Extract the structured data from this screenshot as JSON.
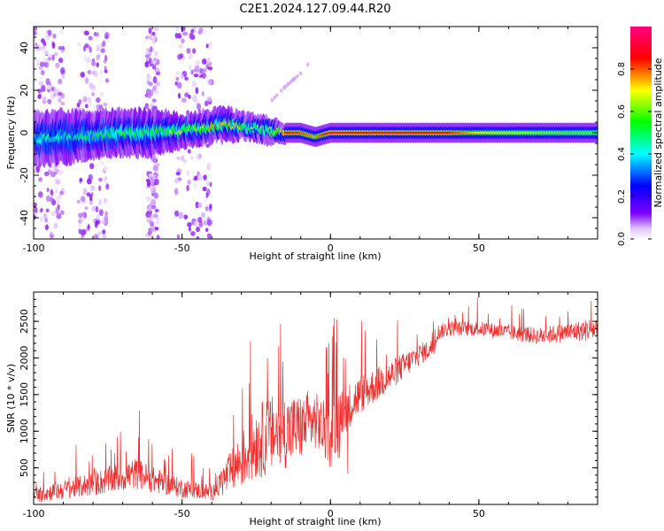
{
  "title": "C2E1.2024.127.09.44.R20",
  "chart_data": [
    {
      "type": "heatmap",
      "xlabel": "Height of straight line (km)",
      "ylabel": "Frequency (Hz)",
      "xlim": [
        -100,
        90
      ],
      "ylim": [
        -50,
        50
      ],
      "xticks": [
        -100,
        -50,
        0,
        50
      ],
      "yticks": [
        -40,
        -20,
        0,
        20,
        40
      ],
      "colorbar": {
        "label": "Normalized spectral amplitude",
        "range": [
          0,
          1
        ],
        "ticks": [
          0.0,
          0.2,
          0.4,
          0.6,
          0.8
        ],
        "tick_labels": [
          "0.0",
          "0.2",
          "0.4",
          "0.6",
          "0.8"
        ],
        "colors": [
          "#ffffff",
          "#8000ff",
          "#0000ff",
          "#00ffff",
          "#00ff00",
          "#ffff00",
          "#ff0000",
          "#ff0080"
        ]
      },
      "ridge": {
        "x": [
          -100,
          -90,
          -80,
          -70,
          -60,
          -50,
          -45,
          -40,
          -35,
          -30,
          -25,
          -20,
          -15,
          -10,
          -5,
          0,
          10,
          20,
          30,
          40,
          50,
          60,
          70,
          80,
          90
        ],
        "y": [
          -3,
          -2,
          -1,
          0,
          0,
          1,
          2,
          3,
          4,
          3,
          2,
          1,
          0,
          0,
          -2,
          0,
          0,
          0,
          0,
          0,
          0,
          0,
          0,
          0,
          0
        ],
        "amplitude": [
          0.4,
          0.42,
          0.45,
          0.5,
          0.52,
          0.6,
          0.62,
          0.68,
          0.65,
          0.62,
          0.55,
          0.58,
          0.85,
          0.82,
          0.75,
          0.9,
          0.88,
          0.88,
          0.86,
          0.85,
          0.7,
          0.65,
          0.62,
          0.6,
          0.58
        ],
        "width_hz": [
          8,
          8,
          7,
          7,
          7,
          5,
          5,
          5,
          5,
          4,
          4,
          4,
          3,
          3,
          3,
          3,
          3,
          3,
          3,
          3,
          3,
          3,
          3,
          3,
          3
        ]
      },
      "weak_bands_x": [
        [
          -100,
          -90
        ],
        [
          -85,
          -75
        ],
        [
          -62,
          -58
        ],
        [
          -52,
          -40
        ]
      ],
      "arc": {
        "x": [
          -22,
          -15,
          -10,
          -6
        ],
        "y": [
          12,
          22,
          28,
          35
        ]
      }
    },
    {
      "type": "line",
      "xlabel": "Height of straight line (km)",
      "ylabel": "SNR (10 * v/v)",
      "xlim": [
        -100,
        90
      ],
      "ylim": [
        0,
        2900
      ],
      "xticks": [
        -100,
        -50,
        0,
        50
      ],
      "yticks": [
        500,
        1000,
        1500,
        2000,
        2500
      ],
      "color": "#f03030",
      "envelope": {
        "x": [
          -100,
          -90,
          -80,
          -70,
          -65,
          -60,
          -50,
          -40,
          -35,
          -30,
          -25,
          -20,
          -15,
          -10,
          -5,
          0,
          5,
          10,
          20,
          30,
          35,
          36,
          40,
          50,
          60,
          70,
          80,
          90
        ],
        "mean": [
          130,
          200,
          280,
          380,
          420,
          340,
          220,
          160,
          380,
          600,
          850,
          950,
          1000,
          1050,
          1150,
          900,
          1300,
          1500,
          1750,
          2050,
          2150,
          2350,
          2400,
          2400,
          2350,
          2300,
          2350,
          2400
        ],
        "spread": [
          180,
          220,
          280,
          340,
          360,
          300,
          220,
          180,
          420,
          650,
          850,
          900,
          850,
          750,
          650,
          700,
          550,
          450,
          350,
          250,
          200,
          180,
          170,
          170,
          180,
          190,
          220,
          280
        ]
      }
    }
  ]
}
